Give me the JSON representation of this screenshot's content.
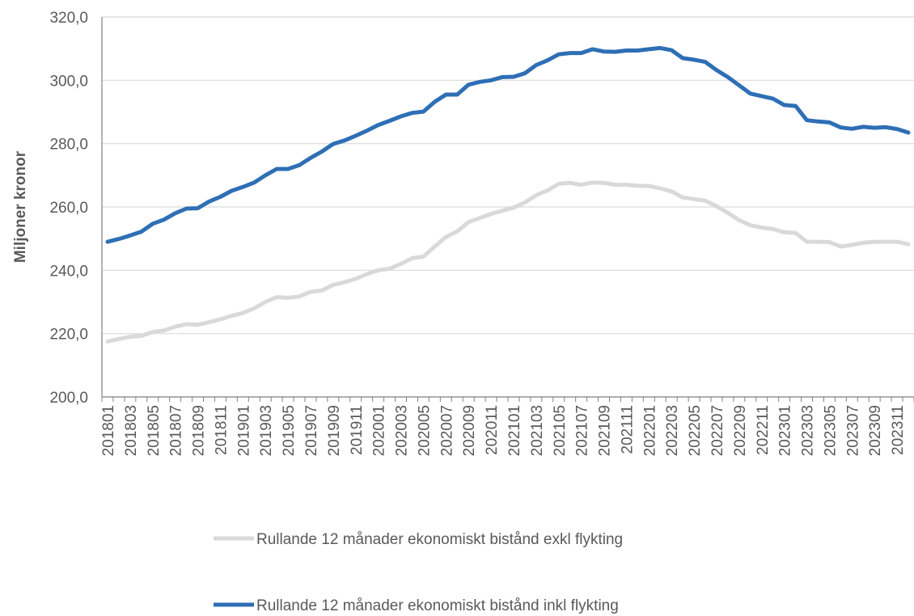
{
  "chart_data": {
    "type": "line",
    "title": "",
    "xlabel": "",
    "ylabel": "Miljoner kronor",
    "ylim": [
      200,
      320
    ],
    "yticks": [
      "200,0",
      "220,0",
      "240,0",
      "260,0",
      "280,0",
      "300,0",
      "320,0"
    ],
    "grid": "horizontal",
    "legend_position": "bottom",
    "x": [
      "201801",
      "201802",
      "201803",
      "201804",
      "201805",
      "201806",
      "201807",
      "201808",
      "201809",
      "201810",
      "201811",
      "201812",
      "201901",
      "201902",
      "201903",
      "201904",
      "201905",
      "201906",
      "201907",
      "201908",
      "201909",
      "201910",
      "201911",
      "201912",
      "202001",
      "202002",
      "202003",
      "202004",
      "202005",
      "202006",
      "202007",
      "202008",
      "202009",
      "202010",
      "202011",
      "202012",
      "202101",
      "202102",
      "202103",
      "202104",
      "202105",
      "202106",
      "202107",
      "202108",
      "202109",
      "202110",
      "202111",
      "202112",
      "202201",
      "202202",
      "202203",
      "202204",
      "202205",
      "202206",
      "202207",
      "202208",
      "202209",
      "202210",
      "202211",
      "202212",
      "202301",
      "202302",
      "202303",
      "202304",
      "202305",
      "202306",
      "202307",
      "202308",
      "202309",
      "202310",
      "202311",
      "202312"
    ],
    "xticks": [
      "201801",
      "201803",
      "201805",
      "201807",
      "201809",
      "201811",
      "201901",
      "201903",
      "201905",
      "201907",
      "201909",
      "201911",
      "202001",
      "202003",
      "202005",
      "202007",
      "202009",
      "202011",
      "202101",
      "202103",
      "202105",
      "202107",
      "202109",
      "202111",
      "202201",
      "202203",
      "202205",
      "202207",
      "202209",
      "202211",
      "202301",
      "202303",
      "202305",
      "202307",
      "202309",
      "202311"
    ],
    "series": [
      {
        "name": "Rullande 12 månader ekonomiskt bistånd exkl flykting",
        "color": "#d9d9d9",
        "values": [
          217.5,
          218.3,
          219.0,
          219.3,
          220.5,
          221.0,
          222.2,
          223.0,
          222.8,
          223.6,
          224.5,
          225.6,
          226.5,
          228.0,
          230.0,
          231.5,
          231.3,
          231.7,
          233.2,
          233.6,
          235.4,
          236.2,
          237.3,
          238.8,
          240.0,
          240.5,
          242.0,
          243.8,
          244.3,
          247.5,
          250.5,
          252.3,
          255.2,
          256.5,
          257.8,
          258.8,
          259.8,
          261.4,
          263.7,
          265.2,
          267.3,
          267.6,
          267.0,
          267.7,
          267.6,
          267.0,
          267.0,
          266.7,
          266.6,
          265.9,
          264.9,
          263.0,
          262.5,
          262.0,
          260.2,
          258.1,
          255.8,
          254.2,
          253.5,
          253.0,
          252.0,
          251.8,
          249.0,
          249.0,
          248.9,
          247.5,
          248.0,
          248.7,
          249.0,
          249.0,
          249.0,
          248.2
        ]
      },
      {
        "name": "Rullande 12 månader ekonomiskt bistånd inkl flykting",
        "color": "#2e6fb5",
        "values": [
          249.0,
          249.9,
          251.0,
          252.2,
          254.7,
          256.0,
          258.0,
          259.5,
          259.6,
          261.7,
          263.2,
          265.1,
          266.3,
          267.7,
          270.0,
          272.0,
          272.0,
          273.2,
          275.5,
          277.5,
          279.9,
          281.0,
          282.5,
          284.1,
          285.9,
          287.2,
          288.6,
          289.7,
          290.1,
          293.2,
          295.5,
          295.5,
          298.6,
          299.5,
          300.0,
          301.0,
          301.1,
          302.2,
          304.8,
          306.3,
          308.2,
          308.6,
          308.6,
          309.8,
          309.1,
          309.0,
          309.4,
          309.4,
          309.8,
          310.2,
          309.5,
          307.0,
          306.5,
          305.8,
          303.2,
          301.0,
          298.4,
          295.8,
          295.0,
          294.2,
          292.2,
          291.9,
          287.4,
          287.0,
          286.7,
          285.1,
          284.7,
          285.3,
          285.0,
          285.2,
          284.6,
          283.5
        ]
      }
    ]
  }
}
